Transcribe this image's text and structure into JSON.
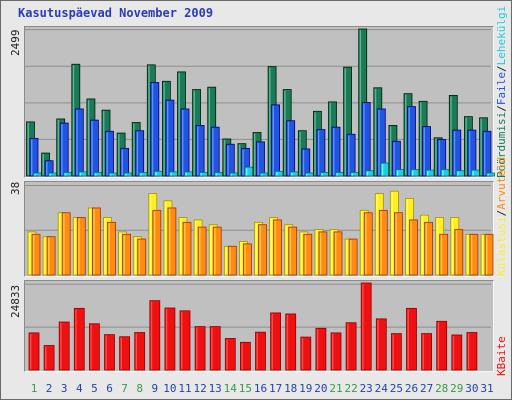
{
  "title": "Kasutuspäevad November 2009",
  "colors": {
    "hits": "#1a7a5a",
    "files": "#2255dd",
    "pages": "#22ccdd",
    "visits": "#ffee22",
    "sites": "#ff8c10",
    "kbytes": "#ee1111",
    "weekday_label": "#2244aa",
    "weekend_label": "#3a9a4a"
  },
  "right_legends": {
    "top": [
      {
        "text": "Pöördumisi",
        "color": "#1a7a5a"
      },
      {
        "text": "/",
        "color": "#222222"
      },
      {
        "text": "Faile",
        "color": "#2255dd"
      },
      {
        "text": "/",
        "color": "#222222"
      },
      {
        "text": "Lehekülgi",
        "color": "#22ccdd"
      }
    ],
    "middle": [
      {
        "text": "Külastusi",
        "color": "#ffee22"
      },
      {
        "text": "/",
        "color": "#222222"
      },
      {
        "text": "Arvuteid",
        "color": "#ff8c10"
      }
    ],
    "bottom": [
      {
        "text": "KBaite",
        "color": "#ee1111"
      }
    ]
  },
  "chart_data": [
    {
      "type": "bar",
      "panel": "top",
      "ymax_label": "2499",
      "ylim": [
        0,
        2499
      ],
      "categories": [
        "1",
        "2",
        "3",
        "4",
        "5",
        "6",
        "7",
        "8",
        "9",
        "10",
        "11",
        "12",
        "13",
        "14",
        "15",
        "16",
        "17",
        "18",
        "19",
        "20",
        "21",
        "22",
        "23",
        "24",
        "25",
        "26",
        "27",
        "28",
        "29",
        "30",
        "31"
      ],
      "series": [
        {
          "name": "Pöördumisi",
          "values": [
            920,
            390,
            970,
            1900,
            1310,
            1120,
            730,
            910,
            1890,
            1610,
            1770,
            1470,
            1510,
            630,
            550,
            740,
            1860,
            1470,
            770,
            1100,
            1260,
            1850,
            2499,
            1500,
            860,
            1400,
            1270,
            650,
            1370,
            1010,
            990
          ]
        },
        {
          "name": "Faile",
          "values": [
            640,
            260,
            900,
            1140,
            950,
            760,
            470,
            770,
            1590,
            1290,
            1140,
            860,
            830,
            540,
            470,
            580,
            1210,
            940,
            460,
            790,
            830,
            710,
            1250,
            1140,
            590,
            1180,
            840,
            620,
            780,
            780,
            760
          ]
        },
        {
          "name": "Lehekülgi",
          "values": [
            50,
            30,
            60,
            70,
            60,
            50,
            40,
            60,
            80,
            70,
            70,
            60,
            60,
            40,
            150,
            50,
            80,
            70,
            40,
            60,
            60,
            60,
            90,
            220,
            110,
            110,
            100,
            110,
            90,
            100,
            50
          ]
        }
      ]
    },
    {
      "type": "bar",
      "panel": "middle",
      "ymax_label": "38",
      "ylim": [
        0,
        38
      ],
      "categories": [
        "1",
        "2",
        "3",
        "4",
        "5",
        "6",
        "7",
        "8",
        "9",
        "10",
        "11",
        "12",
        "13",
        "14",
        "15",
        "16",
        "17",
        "18",
        "19",
        "20",
        "21",
        "22",
        "23",
        "24",
        "25",
        "26",
        "27",
        "28",
        "29",
        "30",
        "31"
      ],
      "series": [
        {
          "name": "Külastusi",
          "values": [
            18,
            16,
            26,
            24,
            28,
            24,
            18,
            16,
            34,
            31,
            24,
            23,
            21,
            12,
            14,
            22,
            24,
            21,
            18,
            19,
            19,
            15,
            27,
            34,
            35,
            32,
            25,
            24,
            24,
            17,
            17
          ]
        },
        {
          "name": "Arvuteid",
          "values": [
            17,
            16,
            26,
            24,
            28,
            22,
            17,
            15,
            27,
            28,
            22,
            20,
            20,
            12,
            13,
            21,
            23,
            20,
            17,
            18,
            18,
            15,
            26,
            27,
            26,
            23,
            22,
            17,
            19,
            17,
            17
          ]
        }
      ]
    },
    {
      "type": "bar",
      "panel": "bottom",
      "ymax_label": "24833",
      "ylim": [
        0,
        24833
      ],
      "categories": [
        "1",
        "2",
        "3",
        "4",
        "5",
        "6",
        "7",
        "8",
        "9",
        "10",
        "11",
        "12",
        "13",
        "14",
        "15",
        "16",
        "17",
        "18",
        "19",
        "20",
        "21",
        "22",
        "23",
        "24",
        "25",
        "26",
        "27",
        "28",
        "29",
        "30",
        "31"
      ],
      "series": [
        {
          "name": "KBaite",
          "values": [
            10600,
            7000,
            13700,
            17600,
            13200,
            10100,
            9500,
            10700,
            19800,
            17700,
            16900,
            12400,
            12400,
            9000,
            7900,
            10800,
            16300,
            16000,
            9400,
            11900,
            10600,
            13500,
            24833,
            14600,
            10400,
            17600,
            10400,
            13900,
            10000,
            10700,
            null
          ]
        }
      ]
    }
  ],
  "x_labels": [
    {
      "text": "1",
      "weekend": true
    },
    {
      "text": "2",
      "weekend": false
    },
    {
      "text": "3",
      "weekend": false
    },
    {
      "text": "4",
      "weekend": false
    },
    {
      "text": "5",
      "weekend": false
    },
    {
      "text": "6",
      "weekend": false
    },
    {
      "text": "7",
      "weekend": true
    },
    {
      "text": "8",
      "weekend": true
    },
    {
      "text": "9",
      "weekend": false
    },
    {
      "text": "10",
      "weekend": false
    },
    {
      "text": "11",
      "weekend": false
    },
    {
      "text": "12",
      "weekend": false
    },
    {
      "text": "13",
      "weekend": false
    },
    {
      "text": "14",
      "weekend": true
    },
    {
      "text": "15",
      "weekend": true
    },
    {
      "text": "16",
      "weekend": false
    },
    {
      "text": "17",
      "weekend": false
    },
    {
      "text": "18",
      "weekend": false
    },
    {
      "text": "19",
      "weekend": false
    },
    {
      "text": "20",
      "weekend": false
    },
    {
      "text": "21",
      "weekend": true
    },
    {
      "text": "22",
      "weekend": true
    },
    {
      "text": "23",
      "weekend": false
    },
    {
      "text": "24",
      "weekend": false
    },
    {
      "text": "25",
      "weekend": false
    },
    {
      "text": "26",
      "weekend": false
    },
    {
      "text": "27",
      "weekend": false
    },
    {
      "text": "28",
      "weekend": true
    },
    {
      "text": "29",
      "weekend": true
    },
    {
      "text": "30",
      "weekend": false
    },
    {
      "text": "31",
      "weekend": false
    }
  ]
}
